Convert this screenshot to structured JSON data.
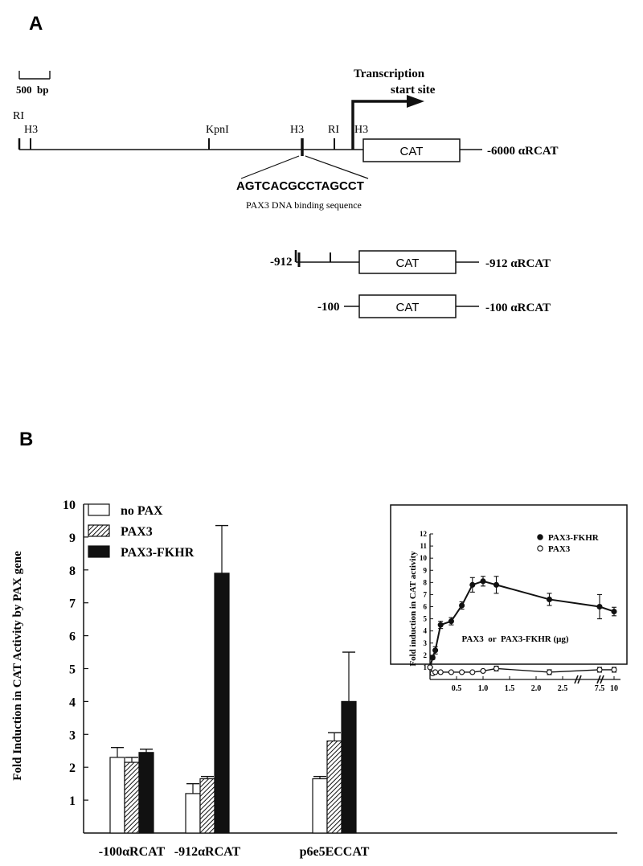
{
  "panel_a": {
    "label": "A",
    "scale_bar": "500  bp",
    "transcription_label_1": "Transcription",
    "transcription_label_2": "start site",
    "site_ri_1": "RI",
    "site_h3_1": "H3",
    "site_kpni": "KpnI",
    "site_h3_2": "H3",
    "site_ri_2": "RI",
    "site_h3_3": "H3",
    "cat_box": "CAT",
    "construct_6000": "-6000 αRCAT",
    "binding_sequence": "AGTCACGCCTAGCCT",
    "binding_caption": "PAX3 DNA binding sequence",
    "construct_912_left": "-912",
    "construct_912_right": "-912 αRCAT",
    "construct_100_left": "-100",
    "construct_100_right": "-100 αRCAT"
  },
  "panel_b": {
    "label": "B",
    "chart_data": [
      {
        "type": "bar",
        "ylabel": "Fold Induction in CAT Activity by PAX gene",
        "ylim": [
          0,
          10
        ],
        "yticks": [
          1,
          2,
          3,
          4,
          5,
          6,
          7,
          8,
          9,
          10
        ],
        "categories": [
          "-100αRCAT",
          "-912αRCAT",
          "p6e5ECCAT"
        ],
        "legend_position": "top-left",
        "series": [
          {
            "name": "no PAX",
            "fill": "white",
            "values": [
              2.3,
              1.2,
              1.65
            ],
            "errors": [
              0.3,
              0.3,
              0.07
            ]
          },
          {
            "name": "PAX3",
            "fill": "hatched",
            "values": [
              2.15,
              1.65,
              2.8
            ],
            "errors": [
              0.15,
              0.07,
              0.25
            ]
          },
          {
            "name": "PAX3-FKHR",
            "fill": "black",
            "values": [
              2.45,
              7.9,
              4.0
            ],
            "errors": [
              0.1,
              1.45,
              1.5
            ]
          }
        ]
      },
      {
        "type": "line",
        "ylabel": "Fold induction in CAT activity",
        "xlabel": "PAX3  or  PAX3-FKHR (μg)",
        "ylim": [
          0,
          12
        ],
        "yticks": [
          1,
          2,
          3,
          4,
          5,
          6,
          7,
          8,
          9,
          10,
          11,
          12
        ],
        "xtick_labels": [
          "0.5",
          "1.0",
          "1.5",
          "2.0",
          "2.5",
          "7.5",
          "10"
        ],
        "xtick_values": [
          0.5,
          1.0,
          1.5,
          2.0,
          2.5,
          7.5,
          10
        ],
        "axis_breaks": true,
        "legend_position": "top-right",
        "series": [
          {
            "name": "PAX3-FKHR",
            "marker": "filled-circle",
            "x": [
              0,
              0.05,
              0.1,
              0.2,
              0.4,
              0.6,
              0.8,
              1.0,
              1.25,
              2.25,
              7.5,
              10
            ],
            "y": [
              1.0,
              1.8,
              2.4,
              4.5,
              4.8,
              6.1,
              7.8,
              8.1,
              7.8,
              6.6,
              6.0,
              5.6
            ],
            "err": [
              0,
              0.15,
              0.3,
              0.3,
              0.3,
              0.3,
              0.6,
              0.4,
              0.7,
              0.5,
              1.0,
              0.35
            ]
          },
          {
            "name": "PAX3",
            "marker": "open-circle",
            "x": [
              0,
              0.05,
              0.1,
              0.2,
              0.4,
              0.6,
              0.8,
              1.0,
              1.25,
              2.25,
              7.5,
              10
            ],
            "y": [
              1.0,
              0.5,
              0.6,
              0.6,
              0.6,
              0.6,
              0.6,
              0.7,
              0.9,
              0.6,
              0.8,
              0.8
            ],
            "err": [
              0,
              0,
              0,
              0,
              0,
              0,
              0,
              0,
              0.2,
              0.2,
              0.2,
              0.2
            ]
          }
        ]
      }
    ]
  }
}
